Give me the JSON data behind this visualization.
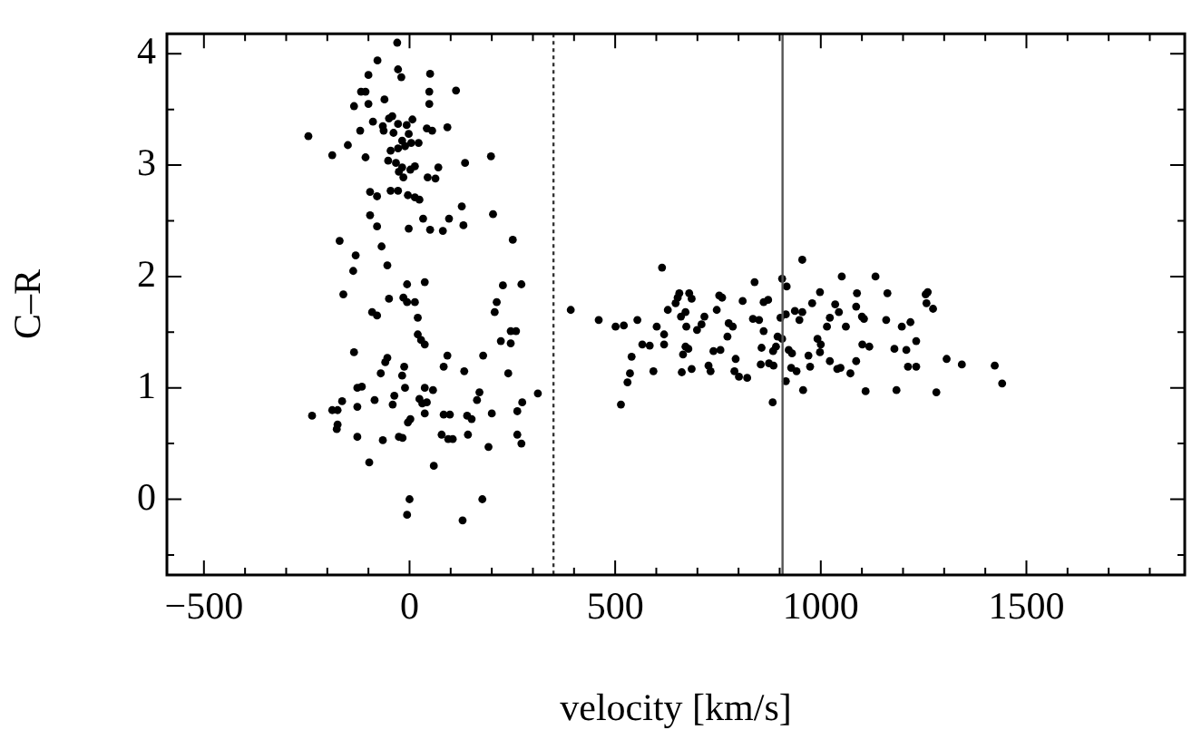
{
  "chart_data": {
    "type": "scatter",
    "xlabel": "velocity [km/s]",
    "ylabel": "C–R",
    "marker": "circle",
    "legend": false,
    "grid": false,
    "xlim": [
      -590,
      1885
    ],
    "ylim": [
      -0.68,
      4.18
    ],
    "xticks": [
      {
        "value": -500,
        "label": "−500"
      },
      {
        "value": -400,
        "label": null
      },
      {
        "value": -300,
        "label": null
      },
      {
        "value": -200,
        "label": null
      },
      {
        "value": -100,
        "label": null
      },
      0,
      {
        "value": 100,
        "label": null
      },
      {
        "value": 200,
        "label": null
      },
      {
        "value": 300,
        "label": null
      },
      {
        "value": 400,
        "label": null
      },
      500,
      {
        "value": 600,
        "label": null
      },
      {
        "value": 700,
        "label": null
      },
      {
        "value": 800,
        "label": null
      },
      {
        "value": 900,
        "label": null
      },
      1000,
      {
        "value": 1100,
        "label": null
      },
      {
        "value": 1200,
        "label": null
      },
      {
        "value": 1300,
        "label": null
      },
      {
        "value": 1400,
        "label": null
      },
      1500,
      {
        "value": 1600,
        "label": null
      },
      {
        "value": 1700,
        "label": null
      },
      {
        "value": 1800,
        "label": null
      }
    ],
    "yticks": [
      {
        "value": -0.5,
        "label": null
      },
      0,
      {
        "value": 0.5,
        "label": null
      },
      1,
      {
        "value": 1.5,
        "label": null
      },
      2,
      {
        "value": 2.5,
        "label": null
      },
      3,
      {
        "value": 3.5,
        "label": null
      },
      4
    ],
    "ref_lines": [
      {
        "axis": "x",
        "value": 350,
        "label": null,
        "color": "#333333",
        "line_style": "dotted"
      },
      {
        "axis": "x",
        "value": 907,
        "label": null,
        "color": "#555555",
        "line_style": "solid"
      }
    ],
    "series": [
      {
        "color": "#000000",
        "x": [
          -30,
          -78,
          -28,
          -100,
          -20,
          50,
          -118,
          -107,
          -61,
          48,
          113,
          -135,
          -100,
          48,
          -89,
          -50,
          -42,
          -120,
          -150,
          -246,
          -188,
          -107,
          -65,
          -28,
          -7,
          7,
          -2,
          -63,
          -39,
          -18,
          -11,
          -46,
          -28,
          4,
          22,
          42,
          55,
          92,
          -52,
          -33,
          -18,
          -26,
          -15,
          13,
          2,
          44,
          70,
          63,
          135,
          198,
          -96,
          -79,
          -46,
          -28,
          -4,
          13,
          24,
          -96,
          -79,
          -2,
          33,
          50,
          81,
          96,
          127,
          131,
          203,
          -170,
          -131,
          -137,
          -68,
          -54,
          -161,
          251,
          -6,
          37,
          227,
          272,
          -50,
          -91,
          -79,
          -15,
          -6,
          13,
          20,
          212,
          207,
          222,
          246,
          259,
          246,
          20,
          28,
          37,
          -135,
          -54,
          -59,
          92,
          83,
          -13,
          -18,
          -70,
          133,
          240,
          179,
          -127,
          -116,
          -11,
          37,
          57,
          170,
          312,
          -164,
          -188,
          -175,
          -127,
          -237,
          -85,
          -37,
          -41,
          24,
          31,
          42,
          164,
          274,
          -175,
          -177,
          -127,
          -65,
          -26,
          -17,
          -4,
          2,
          37,
          83,
          98,
          78,
          94,
          105,
          140,
          151,
          142,
          200,
          192,
          262,
          262,
          272,
          -98,
          59,
          0,
          -6,
          129,
          177,
          392,
          460,
          501,
          521,
          554,
          514,
          536,
          530,
          540,
          566,
          584,
          601,
          614,
          619,
          619,
          593,
          628,
          647,
          652,
          673,
          660,
          671,
          656,
          680,
          686,
          671,
          665,
          678,
          662,
          686,
          727,
          732,
          699,
          710,
          717,
          747,
          753,
          760,
          739,
          756,
          773,
          793,
          790,
          801,
          821,
          776,
          786,
          810,
          839,
          835,
          850,
          861,
          861,
          872,
          856,
          854,
          874,
          885,
          883,
          906,
          917,
          915,
          902,
          906,
          895,
          891,
          884,
          922,
          930,
          928,
          915,
          955,
          937,
          955,
          948,
          941,
          957,
          970,
          974,
          979,
          998,
          992,
          1000,
          998,
          1015,
          1022,
          1035,
          1044,
          1022,
          1040,
          1048,
          1072,
          1051,
          1061,
          1088,
          1086,
          1100,
          1105,
          1101,
          1118,
          1086,
          1109,
          1133,
          1162,
          1159,
          1179,
          1184,
          1197,
          1218,
          1208,
          1212,
          1232,
          1232,
          1255,
          1260,
          1257,
          1273,
          1281,
          1306,
          1343,
          1423,
          1441
        ],
        "values": [
          4.1,
          3.94,
          3.86,
          3.81,
          3.79,
          3.82,
          3.66,
          3.66,
          3.59,
          3.66,
          3.67,
          3.53,
          3.55,
          3.55,
          3.39,
          3.42,
          3.44,
          3.31,
          3.18,
          3.26,
          3.09,
          3.07,
          3.35,
          3.37,
          3.36,
          3.41,
          3.28,
          3.31,
          3.29,
          3.22,
          3.17,
          3.13,
          3.15,
          3.2,
          3.2,
          3.33,
          3.31,
          3.34,
          3.04,
          3.02,
          2.98,
          2.94,
          2.89,
          2.99,
          2.96,
          2.89,
          2.98,
          2.88,
          3.02,
          3.08,
          2.76,
          2.72,
          2.77,
          2.77,
          2.73,
          2.71,
          2.69,
          2.55,
          2.45,
          2.43,
          2.52,
          2.42,
          2.41,
          2.52,
          2.63,
          2.46,
          2.56,
          2.32,
          2.19,
          2.05,
          2.27,
          2.1,
          1.84,
          2.33,
          1.93,
          1.95,
          1.92,
          1.93,
          1.8,
          1.68,
          1.65,
          1.81,
          1.77,
          1.77,
          1.63,
          1.77,
          1.68,
          1.42,
          1.51,
          1.51,
          1.4,
          1.48,
          1.43,
          1.39,
          1.32,
          1.27,
          1.23,
          1.29,
          1.19,
          1.19,
          1.11,
          1.13,
          1.15,
          1.13,
          1.29,
          1.0,
          1.01,
          1.0,
          1.0,
          0.98,
          0.96,
          0.95,
          0.88,
          0.8,
          0.8,
          0.83,
          0.75,
          0.89,
          0.93,
          0.85,
          0.9,
          0.86,
          0.87,
          0.89,
          0.87,
          0.67,
          0.63,
          0.56,
          0.53,
          0.56,
          0.55,
          0.69,
          0.72,
          0.77,
          0.76,
          0.76,
          0.58,
          0.54,
          0.54,
          0.75,
          0.72,
          0.58,
          0.77,
          0.47,
          0.79,
          0.58,
          0.5,
          0.33,
          0.3,
          0.0,
          -0.14,
          -0.19,
          0.0,
          1.7,
          1.61,
          1.55,
          1.56,
          1.61,
          0.85,
          1.13,
          1.05,
          1.28,
          1.39,
          1.38,
          1.55,
          2.08,
          1.48,
          1.39,
          1.15,
          1.7,
          1.76,
          1.81,
          1.55,
          1.64,
          1.68,
          1.85,
          1.85,
          1.8,
          1.37,
          1.3,
          1.35,
          1.14,
          1.17,
          1.2,
          1.15,
          1.52,
          1.57,
          1.64,
          1.7,
          1.83,
          1.81,
          1.33,
          1.34,
          1.46,
          1.26,
          1.15,
          1.1,
          1.09,
          1.58,
          1.55,
          1.78,
          1.95,
          1.62,
          1.61,
          1.51,
          1.77,
          1.79,
          1.36,
          1.21,
          1.22,
          1.2,
          0.87,
          1.98,
          1.91,
          1.66,
          1.63,
          1.44,
          1.46,
          1.37,
          1.33,
          1.34,
          1.31,
          1.18,
          1.06,
          2.15,
          1.69,
          1.68,
          1.61,
          1.15,
          0.98,
          1.29,
          1.19,
          1.76,
          1.86,
          1.44,
          1.39,
          1.32,
          1.55,
          1.63,
          1.75,
          1.68,
          1.24,
          1.17,
          1.18,
          1.13,
          2.0,
          1.55,
          1.85,
          1.73,
          1.64,
          1.62,
          1.39,
          1.37,
          1.24,
          0.97,
          2.0,
          1.85,
          1.61,
          1.35,
          0.98,
          1.55,
          1.59,
          1.34,
          1.19,
          1.19,
          1.42,
          1.84,
          1.86,
          1.76,
          1.71,
          0.96,
          1.26,
          1.21,
          1.2,
          1.04
        ]
      }
    ]
  }
}
